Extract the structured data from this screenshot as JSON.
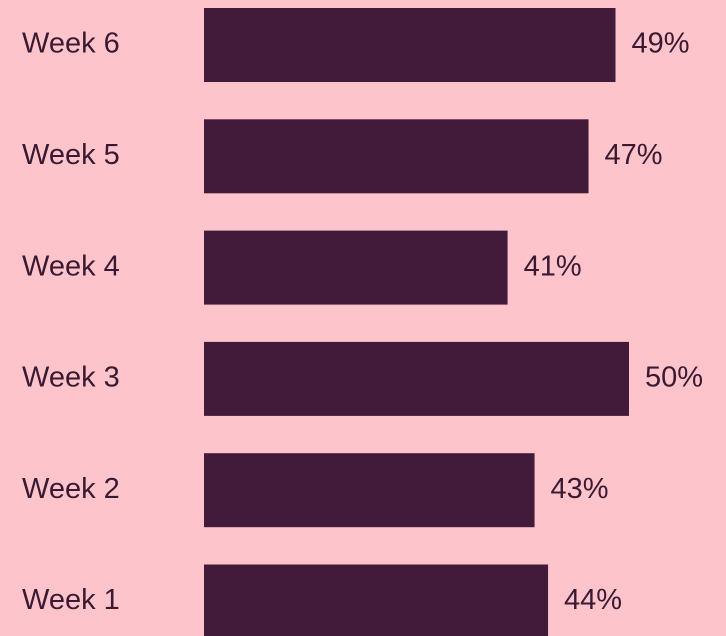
{
  "chart_data": {
    "type": "bar",
    "orientation": "horizontal",
    "categories": [
      "Week 6",
      "Week 5",
      "Week 4",
      "Week 3",
      "Week 2",
      "Week 1"
    ],
    "values": [
      49,
      47,
      41,
      50,
      43,
      44
    ],
    "value_labels": [
      "49%",
      "47%",
      "41%",
      "50%",
      "43%",
      "44%"
    ],
    "color": "#421a3a",
    "xlim": [
      18.5,
      50
    ]
  }
}
